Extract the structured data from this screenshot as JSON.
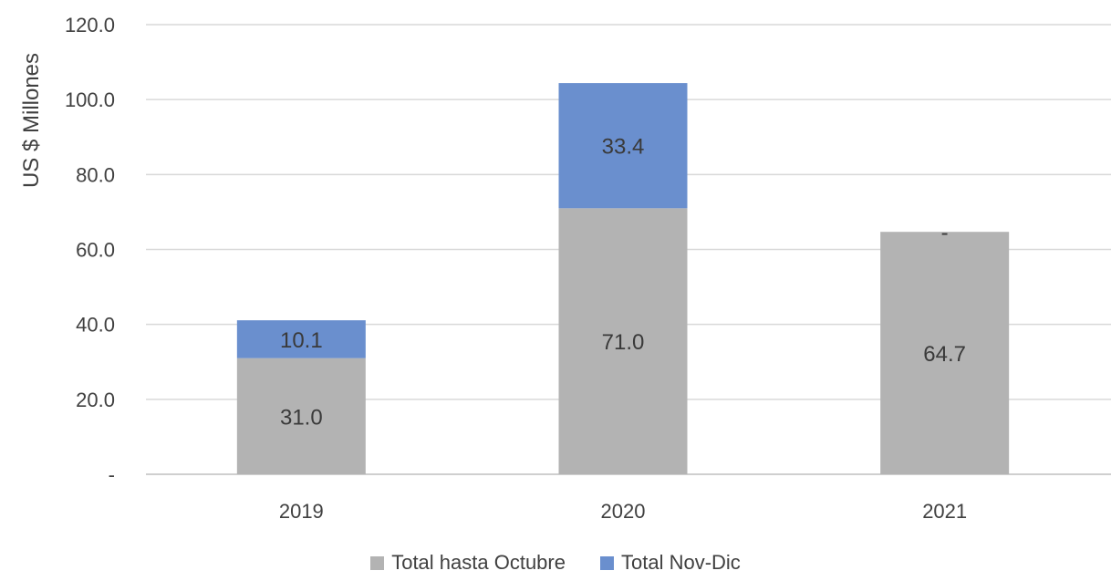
{
  "chart_data": {
    "type": "bar",
    "stacked": true,
    "categories": [
      "2019",
      "2020",
      "2021"
    ],
    "series": [
      {
        "name": "Total hasta Octubre",
        "values": [
          31.0,
          71.0,
          64.7
        ],
        "labels": [
          "31.0",
          "71.0",
          "64.7"
        ],
        "color": "#b3b3b3"
      },
      {
        "name": "Total Nov-Dic",
        "values": [
          10.1,
          33.4,
          0
        ],
        "labels": [
          "10.1",
          "33.4",
          "-"
        ],
        "color": "#6a8fce"
      }
    ],
    "ylabel": "US $ Millones",
    "ylim": [
      0,
      120
    ],
    "yticks": [
      "-",
      "20.0",
      "40.0",
      "60.0",
      "80.0",
      "100.0",
      "120.0"
    ],
    "grid": true,
    "legend_position": "bottom"
  }
}
